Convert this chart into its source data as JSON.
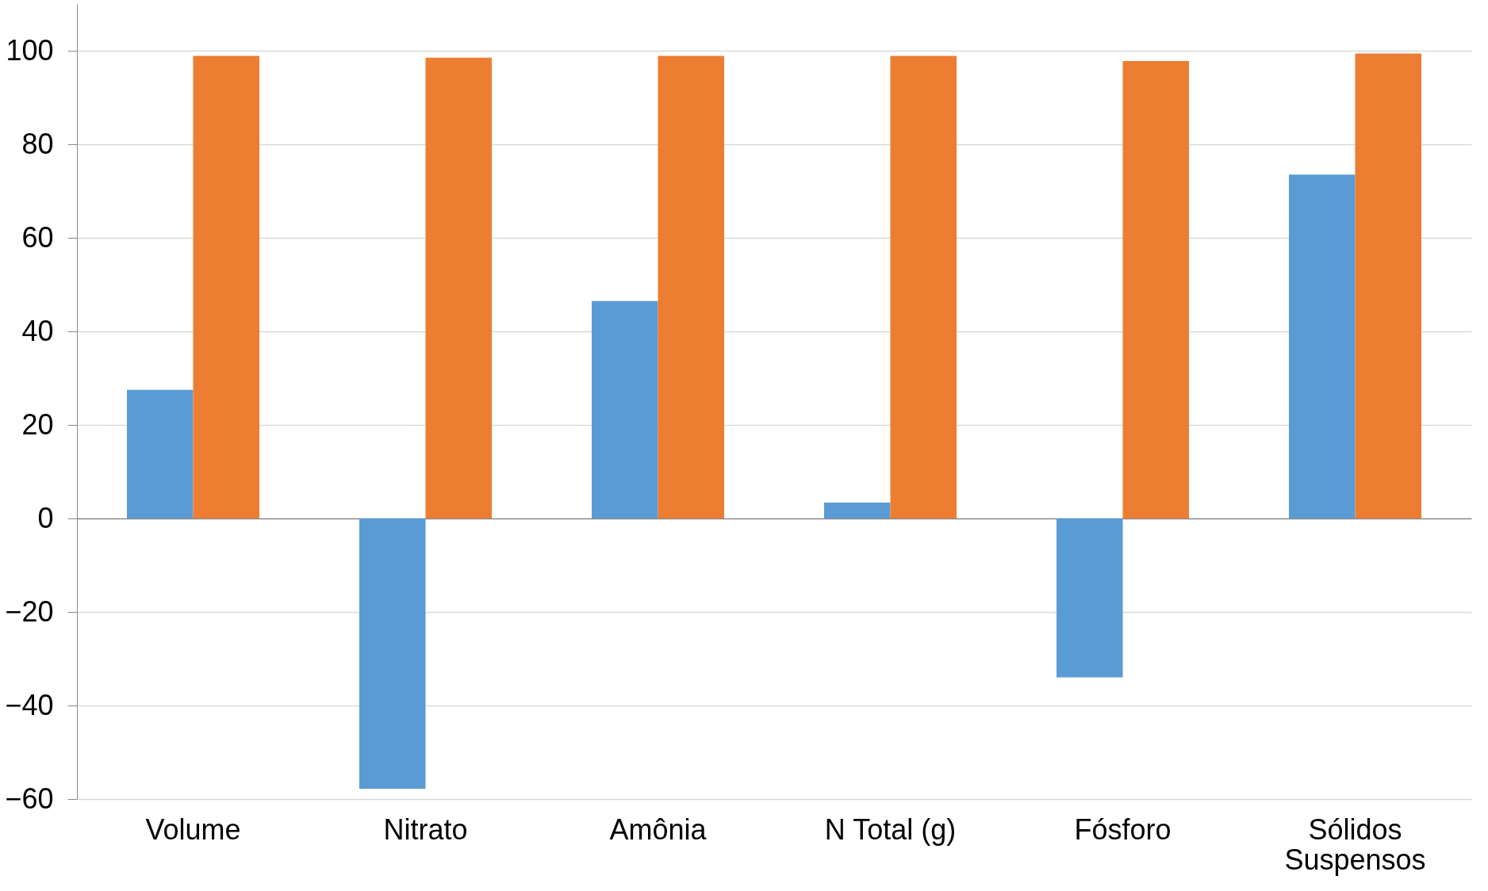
{
  "chart_data": {
    "type": "bar",
    "categories": [
      "Volume",
      "Nitrato",
      "Amônia",
      "N Total (g)",
      "Fósforo",
      "Sólidos Suspensos"
    ],
    "series": [
      {
        "color": "#5b9bd5",
        "values": [
          27.5,
          -57.8,
          46.5,
          3.4,
          -34,
          73.5
        ]
      },
      {
        "color": "#ed7d31",
        "values": [
          98.9,
          98.5,
          98.9,
          98.9,
          97.8,
          99.4
        ]
      }
    ],
    "ylim": [
      -60,
      110
    ],
    "yticks": [
      -60,
      -40,
      -20,
      0,
      20,
      40,
      60,
      80,
      100
    ],
    "grid": "y",
    "legend": false
  }
}
